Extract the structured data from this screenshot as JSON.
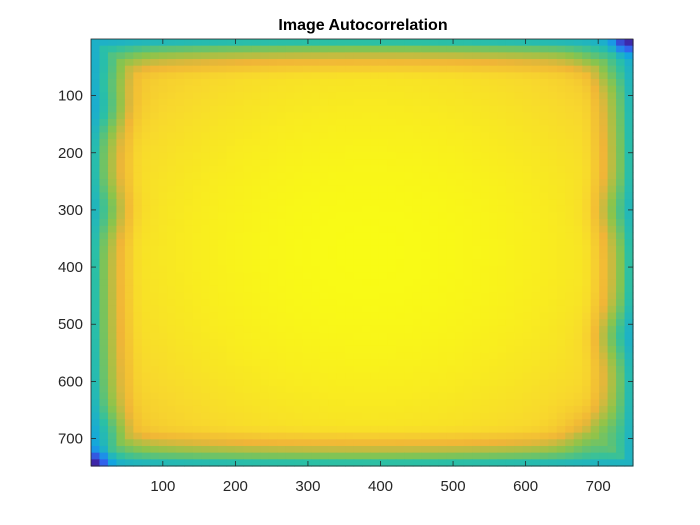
{
  "chart_data": {
    "type": "heatmap",
    "title": "Image Autocorrelation",
    "xlabel": "",
    "ylabel": "",
    "xlim": [
      1,
      748
    ],
    "ylim": [
      1,
      748
    ],
    "y_reversed": true,
    "x_ticks": [
      100,
      200,
      300,
      400,
      500,
      600,
      700
    ],
    "y_ticks": [
      100,
      200,
      300,
      400,
      500,
      600,
      700
    ],
    "colormap": "parula",
    "colormap_stops": [
      "#3e26a8",
      "#2f6cf6",
      "#13a5e0",
      "#2bc0a5",
      "#8cc44b",
      "#f0b537",
      "#f8d82d",
      "#f9fb15"
    ],
    "value_range": [
      0,
      1
    ],
    "peak": {
      "x": 385,
      "y": 375,
      "value": 1.0
    },
    "corner_minima": [
      {
        "x": 740,
        "y": 6,
        "value": 0.0
      },
      {
        "x": 6,
        "y": 742,
        "value": 0.0
      }
    ],
    "edge_regions": [
      {
        "x": 10,
        "y": 40,
        "value": 0.3
      },
      {
        "x": 6,
        "y": 120,
        "value": 0.22
      },
      {
        "x": 6,
        "y": 300,
        "value": 0.28
      },
      {
        "x": 6,
        "y": 700,
        "value": 0.2
      },
      {
        "x": 720,
        "y": 30,
        "value": 0.28
      },
      {
        "x": 744,
        "y": 300,
        "value": 0.3
      },
      {
        "x": 744,
        "y": 520,
        "value": 0.22
      },
      {
        "x": 700,
        "y": 700,
        "value": 0.3
      }
    ],
    "grid": false,
    "legend": "none"
  }
}
